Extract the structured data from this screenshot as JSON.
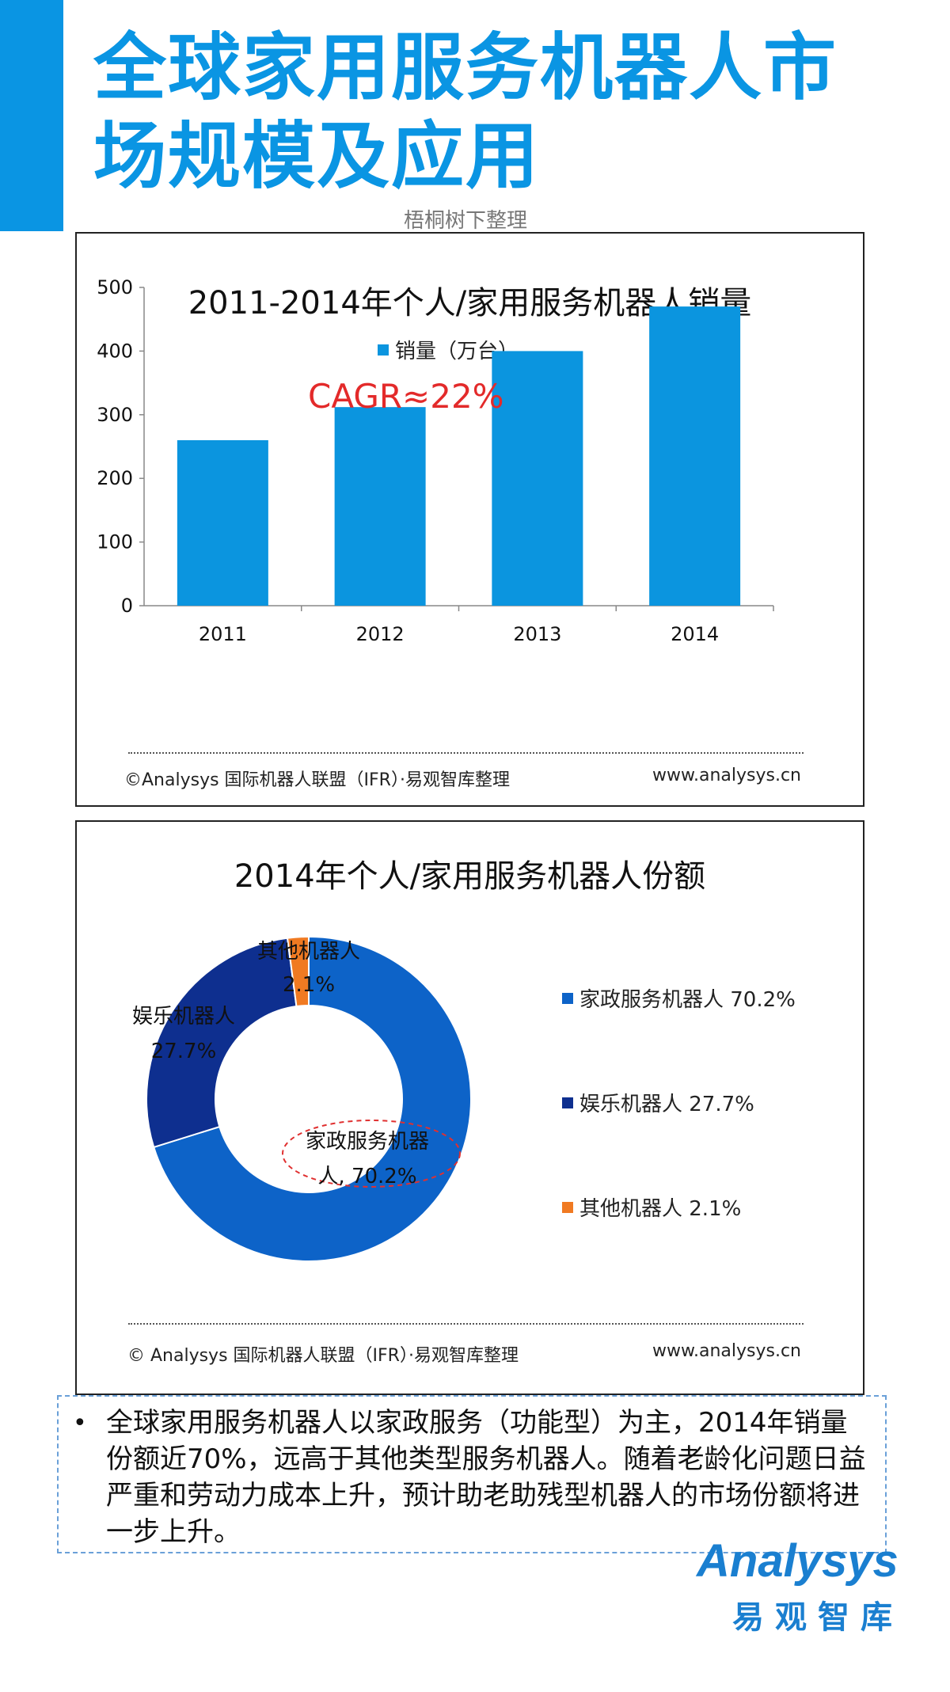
{
  "header": {
    "title": "全球家用服务机器人市场规模及应用",
    "subtitle": "梧桐树下整理"
  },
  "chart_data": [
    {
      "type": "bar",
      "title": "2011-2014年个人/家用服务机器人销量",
      "categories": [
        "2011",
        "2012",
        "2013",
        "2014"
      ],
      "series": [
        {
          "name": "销量（万台）",
          "values": [
            260,
            312,
            400,
            470
          ]
        }
      ],
      "ylim": [
        0,
        500
      ],
      "yticks": [
        0,
        100,
        200,
        300,
        400,
        500
      ],
      "annotation": "CAGR≈22%",
      "legend": "top",
      "colors": {
        "bar": "#0b95df",
        "annotation": "#e32a2a"
      }
    },
    {
      "type": "pie",
      "title": "2014年个人/家用服务机器人份额",
      "slices": [
        {
          "label": "家政服务机器人",
          "value": 70.2,
          "display": "70.2%",
          "color": "#0d63c8"
        },
        {
          "label": "娱乐机器人",
          "value": 27.7,
          "display": "27.7%",
          "color": "#0e2f8f"
        },
        {
          "label": "其他机器人",
          "value": 2.1,
          "display": "2.1%",
          "color": "#f07a22"
        }
      ],
      "data_labels": [
        {
          "line1": "家政服务机器",
          "line2": "人, 70.2%"
        },
        {
          "line1": "娱乐机器人",
          "line2": "27.7%"
        },
        {
          "line1": "其他机器人",
          "line2": "2.1%"
        }
      ],
      "legend_entries": [
        "家政服务机器人 70.2%",
        "娱乐机器人 27.7%",
        "其他机器人 2.1%"
      ],
      "legend": "right"
    }
  ],
  "panel1": {
    "source": "©Analysys 国际机器人联盟（IFR）·易观智库整理",
    "url": "www.analysys.cn"
  },
  "panel2": {
    "source": "© Analysys 国际机器人联盟（IFR）·易观智库整理",
    "url": "www.analysys.cn"
  },
  "note": {
    "bullet": "•",
    "text": "全球家用服务机器人以家政服务（功能型）为主，2014年销量份额近70%，远高于其他类型服务机器人。随着老龄化问题日益严重和劳动力成本上升，预计助老助残型机器人的市场份额将进一步上升。"
  },
  "logo": {
    "en": "Analysys",
    "cn": "易观智库"
  }
}
